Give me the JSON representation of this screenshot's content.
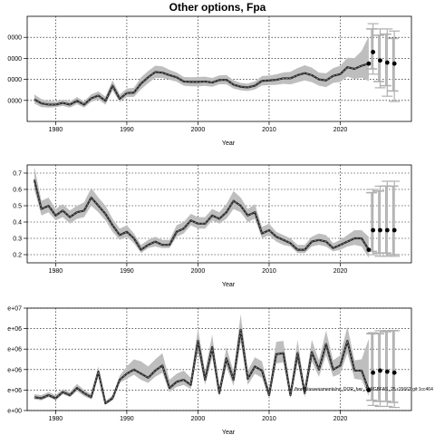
{
  "title": "Other options, Fpa",
  "chart_data": [
    {
      "type": "line",
      "xlabel": "Year",
      "xlim": [
        1976,
        2030
      ],
      "ylim": [
        10000,
        60000
      ],
      "x_ticks": [
        1980,
        1990,
        2000,
        2010,
        2020
      ],
      "y_ticks": [
        20000,
        30000,
        40000,
        50000
      ],
      "y_tick_labels": [
        "0000",
        "0000",
        "0000",
        "0000"
      ],
      "grid": true,
      "series": [
        {
          "x": [
            1977,
            1978,
            1979,
            1980,
            1981,
            1982,
            1983,
            1984,
            1985,
            1986,
            1987,
            1988,
            1989,
            1990,
            1991,
            1992,
            1993,
            1994,
            1995,
            1996,
            1997,
            1998,
            1999,
            2000,
            2001,
            2002,
            2003,
            2004,
            2005,
            2006,
            2007,
            2008,
            2009,
            2010,
            2011,
            2012,
            2013,
            2014,
            2015,
            2016,
            2017,
            2018,
            2019,
            2020,
            2021,
            2022,
            2023,
            2024
          ],
          "y": [
            20500,
            18600,
            18000,
            18000,
            18800,
            18000,
            19800,
            18000,
            21000,
            22300,
            19800,
            27000,
            20800,
            23500,
            23700,
            28000,
            31000,
            33500,
            33200,
            32000,
            31000,
            29000,
            28800,
            28800,
            29000,
            28500,
            29700,
            29800,
            27500,
            26500,
            26200,
            27000,
            29300,
            29500,
            29800,
            30500,
            30500,
            32000,
            33000,
            32000,
            30000,
            29500,
            31700,
            32500,
            35800,
            35000,
            36500,
            37500
          ]
        }
      ],
      "band_low": [
        18500,
        16800,
        16600,
        16800,
        17400,
        16600,
        18200,
        16600,
        19300,
        20500,
        18000,
        24700,
        19200,
        21600,
        21700,
        25300,
        28200,
        30700,
        30700,
        29800,
        28900,
        27000,
        26700,
        26700,
        26900,
        26500,
        27700,
        27700,
        25600,
        24800,
        24500,
        25200,
        27100,
        27300,
        27400,
        27900,
        27600,
        28600,
        29500,
        28700,
        27000,
        26300,
        28300,
        28800,
        31300,
        30200,
        30800,
        29200
      ],
      "band_high": [
        22800,
        20600,
        19800,
        19500,
        20400,
        19500,
        21600,
        19600,
        22900,
        24300,
        21800,
        29500,
        22800,
        25600,
        26000,
        31000,
        34000,
        36500,
        36200,
        34500,
        33300,
        31100,
        31000,
        31100,
        31300,
        30700,
        31900,
        32100,
        29600,
        28300,
        28000,
        29000,
        31600,
        31800,
        32400,
        33300,
        33600,
        35400,
        36700,
        35600,
        33200,
        32900,
        35300,
        36500,
        40300,
        40200,
        43500,
        50500
      ],
      "projections": [
        {
          "x": 2024.6,
          "y": 43000,
          "low": 32500,
          "mid_low": 35000,
          "mid_high": 54000,
          "high": 56500
        },
        {
          "x": 2025.6,
          "y": 39000,
          "low": 26000,
          "mid_low": 29000,
          "mid_high": 51000,
          "high": 54000
        },
        {
          "x": 2026.6,
          "y": 38000,
          "low": 22000,
          "mid_low": 27000,
          "mid_high": 51500,
          "high": 54000
        },
        {
          "x": 2027.6,
          "y": 37500,
          "low": 19500,
          "mid_low": 24500,
          "mid_high": 49500,
          "high": 53000
        }
      ]
    },
    {
      "type": "line",
      "xlabel": "Year",
      "xlim": [
        1976,
        2030
      ],
      "ylim": [
        0.15,
        0.75
      ],
      "x_ticks": [
        1980,
        1990,
        2000,
        2010,
        2020
      ],
      "y_ticks": [
        0.2,
        0.3,
        0.4,
        0.5,
        0.6,
        0.7
      ],
      "y_tick_labels": [
        "0.2",
        "0.3",
        "0.4",
        "0.5",
        "0.6",
        "0.7"
      ],
      "grid": true,
      "series": [
        {
          "x": [
            1977,
            1978,
            1979,
            1980,
            1981,
            1982,
            1983,
            1984,
            1985,
            1986,
            1987,
            1988,
            1989,
            1990,
            1991,
            1992,
            1993,
            1994,
            1995,
            1996,
            1997,
            1998,
            1999,
            2000,
            2001,
            2002,
            2003,
            2004,
            2005,
            2006,
            2007,
            2008,
            2009,
            2010,
            2011,
            2012,
            2013,
            2014,
            2015,
            2016,
            2017,
            2018,
            2019,
            2020,
            2021,
            2022,
            2023,
            2024
          ],
          "y": [
            0.66,
            0.48,
            0.5,
            0.44,
            0.47,
            0.43,
            0.46,
            0.47,
            0.55,
            0.5,
            0.45,
            0.38,
            0.32,
            0.34,
            0.3,
            0.23,
            0.26,
            0.28,
            0.26,
            0.26,
            0.34,
            0.36,
            0.41,
            0.39,
            0.39,
            0.44,
            0.42,
            0.46,
            0.53,
            0.5,
            0.44,
            0.46,
            0.33,
            0.35,
            0.31,
            0.29,
            0.27,
            0.23,
            0.23,
            0.28,
            0.29,
            0.28,
            0.24,
            0.26,
            0.28,
            0.3,
            0.3,
            0.23
          ]
        }
      ],
      "band_low": [
        0.6,
        0.44,
        0.46,
        0.41,
        0.43,
        0.39,
        0.42,
        0.43,
        0.5,
        0.46,
        0.41,
        0.34,
        0.29,
        0.31,
        0.27,
        0.21,
        0.24,
        0.25,
        0.24,
        0.24,
        0.31,
        0.33,
        0.38,
        0.36,
        0.36,
        0.41,
        0.39,
        0.42,
        0.48,
        0.46,
        0.4,
        0.42,
        0.3,
        0.32,
        0.28,
        0.26,
        0.25,
        0.21,
        0.21,
        0.25,
        0.26,
        0.25,
        0.22,
        0.23,
        0.25,
        0.26,
        0.25,
        0.18
      ],
      "band_high": [
        0.74,
        0.53,
        0.55,
        0.48,
        0.51,
        0.47,
        0.5,
        0.52,
        0.61,
        0.55,
        0.5,
        0.42,
        0.36,
        0.38,
        0.33,
        0.26,
        0.29,
        0.31,
        0.29,
        0.29,
        0.38,
        0.4,
        0.45,
        0.43,
        0.43,
        0.48,
        0.46,
        0.51,
        0.59,
        0.55,
        0.48,
        0.51,
        0.37,
        0.39,
        0.34,
        0.32,
        0.3,
        0.26,
        0.26,
        0.31,
        0.33,
        0.32,
        0.27,
        0.29,
        0.32,
        0.35,
        0.35,
        0.31
      ],
      "projections": [
        {
          "x": 2024.6,
          "y": 0.35,
          "low": 0.2,
          "mid_low": 0.22,
          "mid_high": 0.58,
          "high": 0.6
        },
        {
          "x": 2025.6,
          "y": 0.35,
          "low": 0.19,
          "mid_low": 0.21,
          "mid_high": 0.59,
          "high": 0.62
        },
        {
          "x": 2026.6,
          "y": 0.35,
          "low": 0.19,
          "mid_low": 0.21,
          "mid_high": 0.62,
          "high": 0.65
        },
        {
          "x": 2027.6,
          "y": 0.35,
          "low": 0.19,
          "mid_low": 0.2,
          "mid_high": 0.62,
          "high": 0.65
        }
      ]
    },
    {
      "type": "line",
      "xlabel": "Year",
      "xlim": [
        1976,
        2030
      ],
      "ylim": [
        0,
        10000000
      ],
      "x_ticks": [
        1980,
        1990,
        2000,
        2010,
        2020
      ],
      "y_ticks": [
        0,
        2000000,
        4000000,
        6000000,
        8000000,
        10000000
      ],
      "y_tick_labels": [
        "e+00",
        "e+06",
        "e+06",
        "e+06",
        "e+06",
        "e+07"
      ],
      "grid": true,
      "series": [
        {
          "x": [
            1977,
            1978,
            1979,
            1980,
            1981,
            1982,
            1983,
            1984,
            1985,
            1986,
            1987,
            1988,
            1989,
            1990,
            1991,
            1992,
            1993,
            1994,
            1995,
            1996,
            1997,
            1998,
            1999,
            2000,
            2001,
            2002,
            2003,
            2004,
            2005,
            2006,
            2007,
            2008,
            2009,
            2010,
            2011,
            2012,
            2013,
            2014,
            2015,
            2016,
            2017,
            2018,
            2019,
            2020,
            2021,
            2022,
            2023,
            2024
          ],
          "y": [
            1300000,
            1200000,
            1500000,
            1200000,
            1800000,
            1500000,
            2200000,
            1700000,
            1300000,
            3800000,
            700000,
            1200000,
            3000000,
            3600000,
            4000000,
            3600000,
            3200000,
            3900000,
            4400000,
            2200000,
            2800000,
            3000000,
            2500000,
            6800000,
            3000000,
            6200000,
            1700000,
            5100000,
            3000000,
            7900000,
            3100000,
            4300000,
            3900000,
            1500000,
            5500000,
            5600000,
            1500000,
            5600000,
            1700000,
            5700000,
            4000000,
            6500000,
            4000000,
            4400000,
            6800000,
            3900000,
            3900000,
            2000000
          ]
        }
      ],
      "band_low": [
        1100000,
        1000000,
        1300000,
        1000000,
        1600000,
        1300000,
        1900000,
        1400000,
        1100000,
        3300000,
        600000,
        1000000,
        2700000,
        3100000,
        3500000,
        3000000,
        2700000,
        3300000,
        3700000,
        1800000,
        2300000,
        2500000,
        2100000,
        5800000,
        2500000,
        5200000,
        1400000,
        4300000,
        2400000,
        6700000,
        2500000,
        3600000,
        3200000,
        1200000,
        4600000,
        4700000,
        1200000,
        4700000,
        1300000,
        4800000,
        3300000,
        5400000,
        3300000,
        3600000,
        5600000,
        3100000,
        3000000,
        1400000
      ],
      "band_high": [
        1600000,
        1500000,
        1800000,
        1500000,
        2100000,
        1800000,
        2600000,
        2000000,
        1600000,
        4300000,
        900000,
        1500000,
        3400000,
        4300000,
        5000000,
        4800000,
        4300000,
        5000000,
        5600000,
        3000000,
        3600000,
        3900000,
        3200000,
        8000000,
        3800000,
        7400000,
        2200000,
        6200000,
        3800000,
        9400000,
        3900000,
        5200000,
        4800000,
        1900000,
        6700000,
        6800000,
        2000000,
        6900000,
        2200000,
        6900000,
        4900000,
        7800000,
        4900000,
        5400000,
        8200000,
        4900000,
        5000000,
        7000000
      ],
      "projections": [
        {
          "x": 2024.6,
          "y": 3700000,
          "low": 500000,
          "mid_low": 1000000,
          "mid_high": 7500000,
          "high": 7600000
        },
        {
          "x": 2025.6,
          "y": 3900000,
          "low": 400000,
          "mid_low": 900000,
          "mid_high": 7500000,
          "high": 7800000
        },
        {
          "x": 2026.6,
          "y": 3800000,
          "low": 400000,
          "mid_low": 900000,
          "mid_high": 7700000,
          "high": 7800000
        },
        {
          "x": 2027.6,
          "y": 3700000,
          "low": 300000,
          "mid_low": 800000,
          "mid_high": 7800000,
          "high": 7800000
        }
      ]
    }
  ],
  "watermark": "/home/assessments/ns_DOR_her_1/WGBFAS_25 r15662 git:1cc464"
}
